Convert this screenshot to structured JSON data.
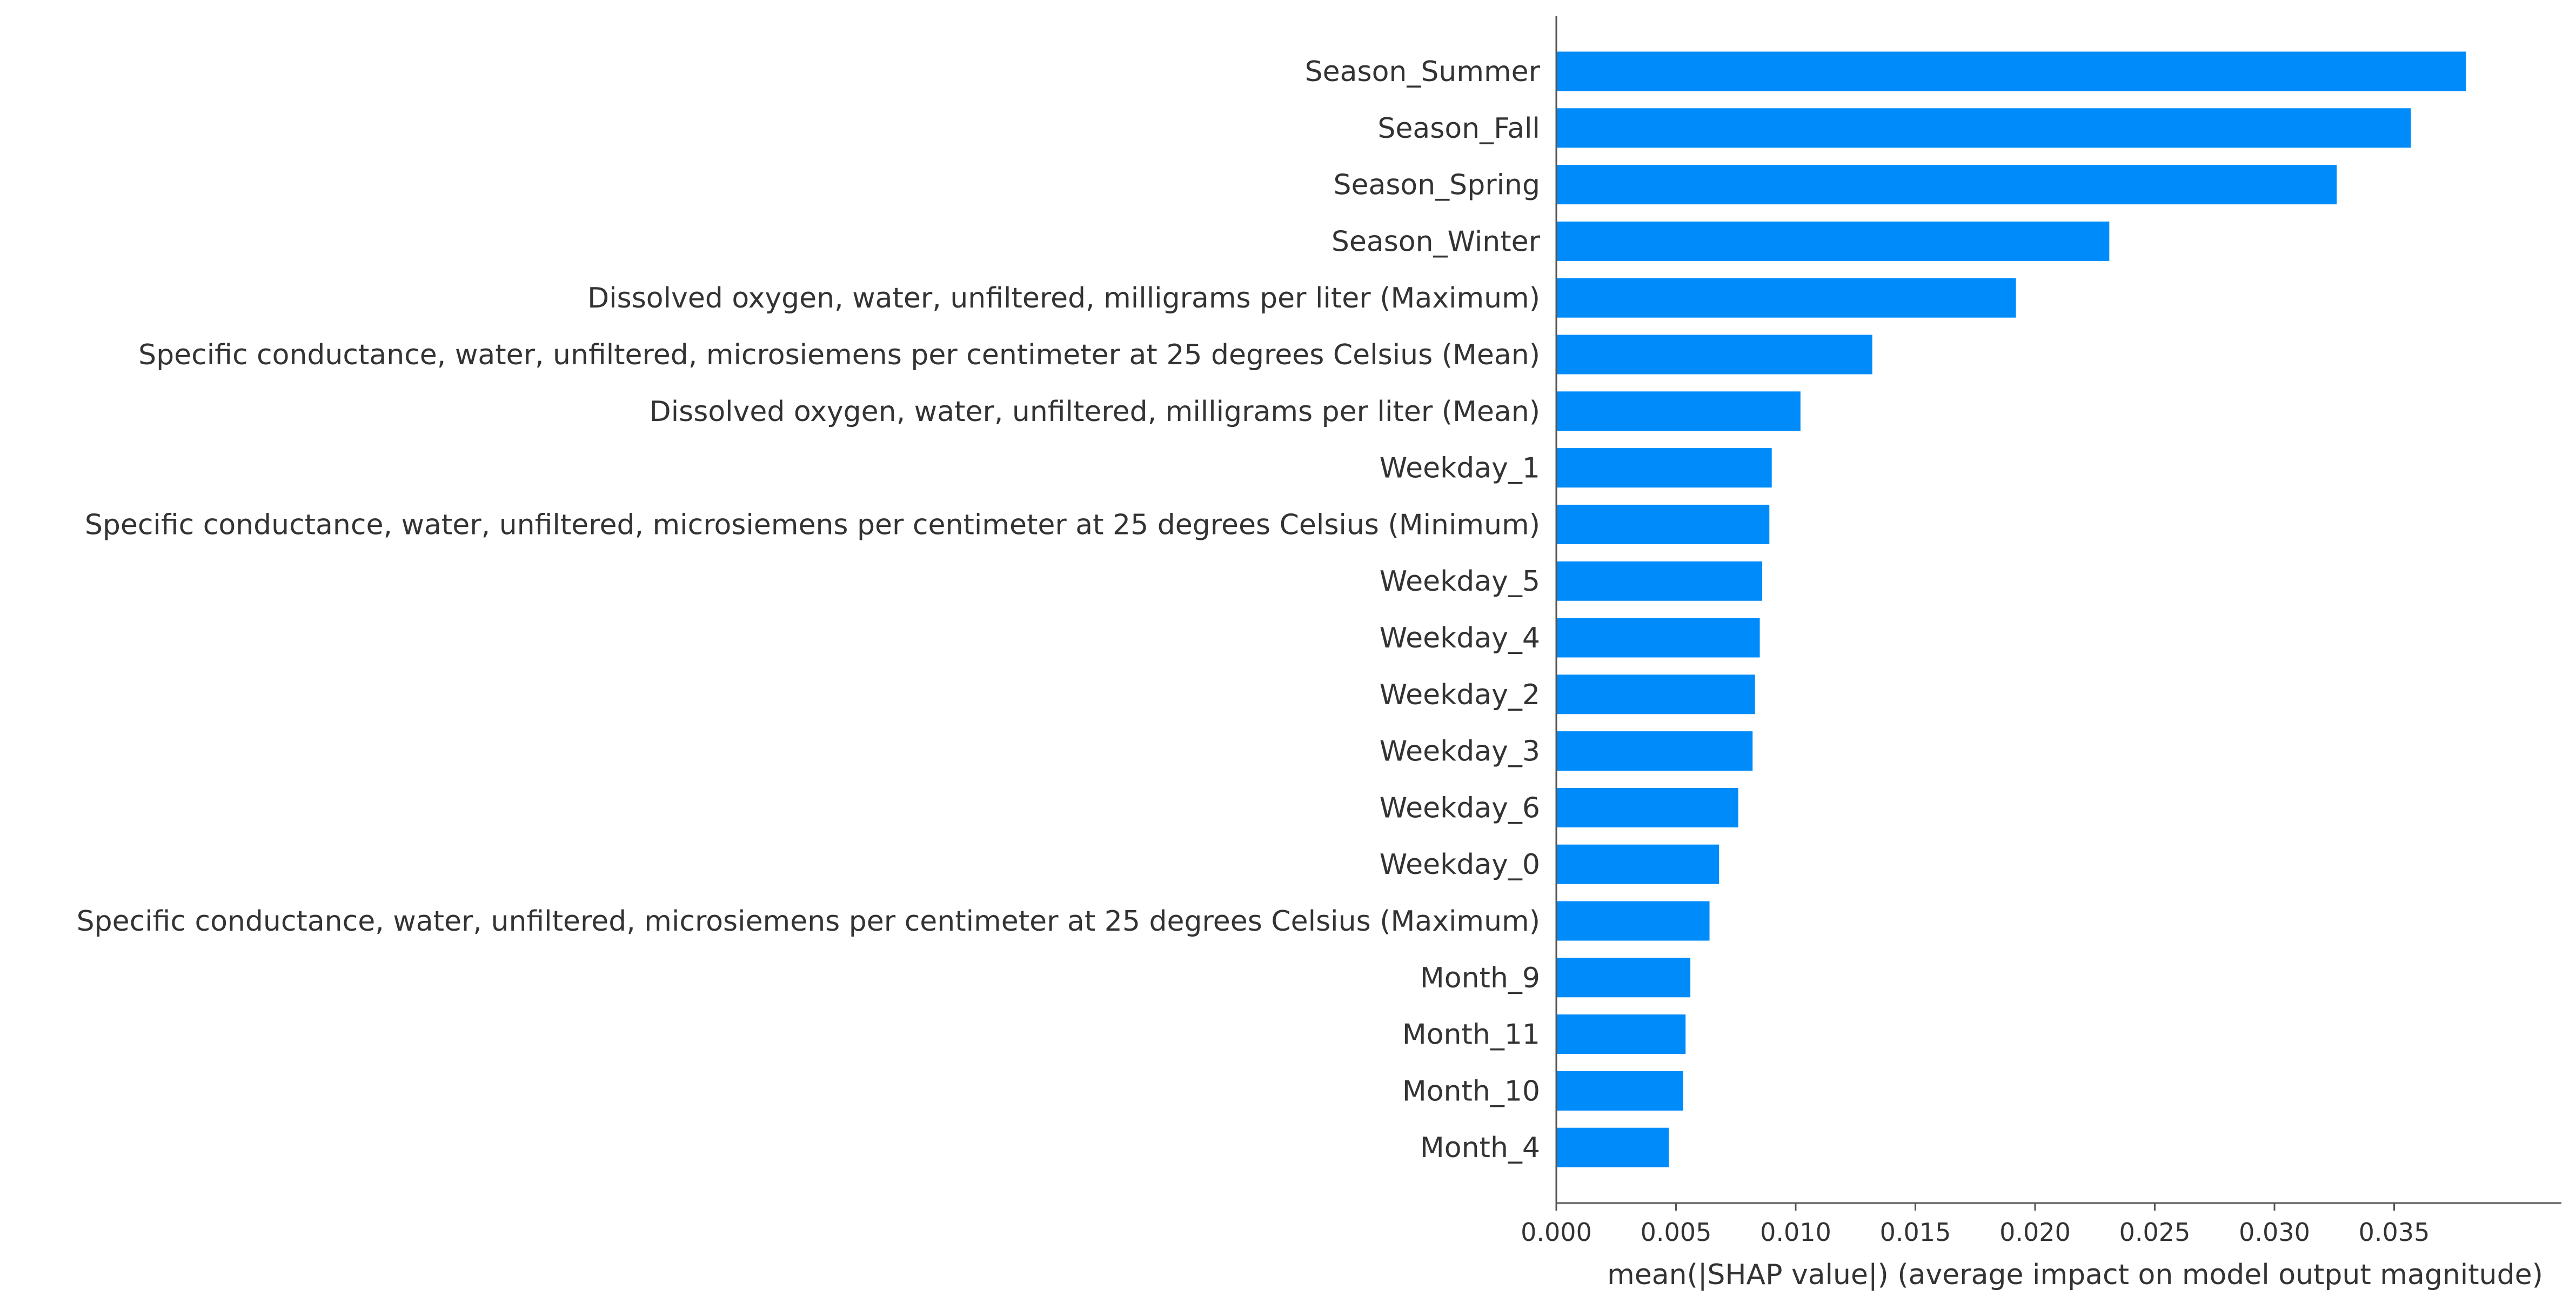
{
  "chart_data": {
    "type": "bar",
    "orientation": "horizontal",
    "title": "",
    "xlabel": "mean(|SHAP value|) (average impact on model output magnitude)",
    "ylabel": "",
    "xlim": [
      0.0,
      0.04
    ],
    "xticks": [
      "0.000",
      "0.005",
      "0.010",
      "0.015",
      "0.020",
      "0.025",
      "0.030",
      "0.035"
    ],
    "grid": false,
    "legend": "none",
    "bar_color": "#008bfb",
    "categories": [
      "Season_Summer",
      "Season_Fall",
      "Season_Spring",
      "Season_Winter",
      "Dissolved oxygen, water, unfiltered, milligrams per liter (Maximum)",
      "Specific conductance, water, unfiltered, microsiemens per centimeter at 25 degrees Celsius (Mean)",
      "Dissolved oxygen, water, unfiltered, milligrams per liter (Mean)",
      "Weekday_1",
      "Specific conductance, water, unfiltered, microsiemens per centimeter at 25 degrees Celsius (Minimum)",
      "Weekday_5",
      "Weekday_4",
      "Weekday_2",
      "Weekday_3",
      "Weekday_6",
      "Weekday_0",
      "Specific conductance, water, unfiltered, microsiemens per centimeter at 25 degrees Celsius (Maximum)",
      "Month_9",
      "Month_11",
      "Month_10",
      "Month_4"
    ],
    "values": [
      0.038,
      0.0357,
      0.0326,
      0.0231,
      0.0192,
      0.0132,
      0.0102,
      0.009,
      0.0089,
      0.0086,
      0.0085,
      0.0083,
      0.0082,
      0.0076,
      0.0068,
      0.0064,
      0.0056,
      0.0054,
      0.0053,
      0.0047
    ]
  }
}
